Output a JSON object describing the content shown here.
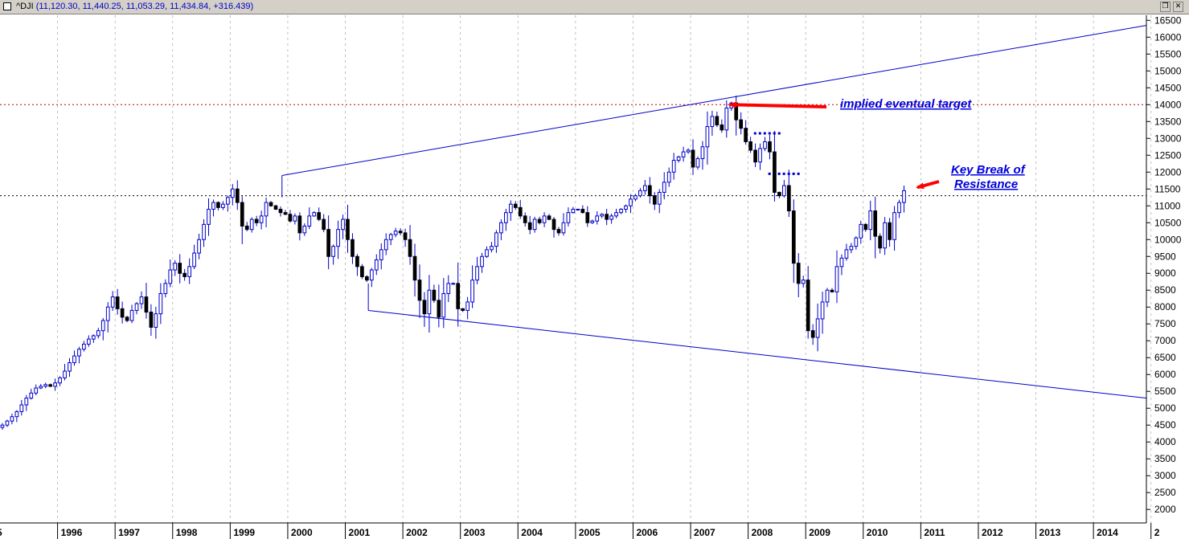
{
  "window": {
    "symbol": "^DJI",
    "ohlc": "(11,120.30, 11,440.25, 11,053.29, 11,434.84, +316.439)"
  },
  "chart_data": {
    "type": "candlestick",
    "y_axis": {
      "ticks": [
        2000,
        2500,
        3000,
        3500,
        4000,
        4500,
        5000,
        5500,
        6000,
        6500,
        7000,
        7500,
        8000,
        8500,
        9000,
        9500,
        10000,
        10500,
        11000,
        11500,
        12000,
        12500,
        13000,
        13500,
        14000,
        14500,
        15000,
        15500,
        16000,
        16500
      ],
      "range": [
        1600,
        16650
      ],
      "side": "right"
    },
    "x_axis": {
      "labels": [
        "1996",
        "1997",
        "1998",
        "1999",
        "2000",
        "2001",
        "2002",
        "2003",
        "2004",
        "2005",
        "2006",
        "2007",
        "2008",
        "2009",
        "2010",
        "2011",
        "2012",
        "2013",
        "2014",
        "2"
      ],
      "edge_label": "5",
      "range": [
        1995.0,
        2014.92
      ]
    },
    "grid": "vertical dashed at year boundaries",
    "candles": {
      "up_color": "#ffffff",
      "down_color": "#000000",
      "wick_color": "#0000c8",
      "month_close": [
        4500,
        4620,
        4750,
        4900,
        5100,
        5300,
        5450,
        5600,
        5650,
        5700,
        5650,
        5750,
        5900,
        6100,
        6350,
        6550,
        6750,
        6900,
        7050,
        7150,
        7300,
        7600,
        8000,
        8300,
        7950,
        7700,
        7600,
        7900,
        8100,
        8300,
        7850,
        7400,
        7800,
        8400,
        8700,
        9100,
        9300,
        9000,
        8900,
        9200,
        9600,
        10000,
        10450,
        10900,
        11100,
        10950,
        11050,
        11250,
        11500,
        11100,
        10400,
        10300,
        10600,
        10500,
        10700,
        11100,
        11000,
        10900,
        10800,
        10750,
        10550,
        10700,
        10200,
        10400,
        10700,
        10800,
        10600,
        10300,
        9500,
        9800,
        10300,
        10600,
        10000,
        9500,
        9200,
        8900,
        8800,
        9100,
        9400,
        9700,
        10000,
        10150,
        10250,
        10200,
        10000,
        9500,
        8800,
        8200,
        7800,
        8500,
        8200,
        7700,
        8400,
        8700,
        8700,
        7950,
        7900,
        8150,
        8800,
        9200,
        9500,
        9700,
        9800,
        10200,
        10500,
        10800,
        11050,
        10950,
        10700,
        10500,
        10300,
        10600,
        10500,
        10700,
        10600,
        10300,
        10200,
        10500,
        10800,
        10900,
        10900,
        10800,
        10500,
        10550,
        10700,
        10750,
        10600,
        10700,
        10800,
        10900,
        11000,
        11200,
        11300,
        11450,
        11600,
        11300,
        11050,
        11400,
        11700,
        12000,
        12350,
        12450,
        12600,
        12650,
        12150,
        12400,
        12750,
        13350,
        13650,
        13400,
        13250,
        13900,
        14050,
        13550,
        13300,
        12900,
        12650,
        12300,
        12700,
        12900,
        12600,
        11400,
        11300,
        11600,
        10850,
        9300,
        8700,
        8800,
        7300,
        7100,
        7650,
        8150,
        8500,
        8450,
        9200,
        9450,
        9700,
        9800,
        10050,
        10450,
        10300,
        10850,
        10100,
        9750,
        10500,
        10000,
        10800,
        11100,
        11450
      ]
    },
    "annotations": [
      {
        "text": "implied eventual target",
        "arrow_to": [
          2007.6,
          14000
        ]
      },
      {
        "text": "Key Break of",
        "line2": "Resistance",
        "arrow_to": [
          2010.8,
          11450
        ]
      }
    ],
    "reference_lines": [
      {
        "type": "horizontal",
        "y": 14000,
        "style": "dotted",
        "color": "#c00000"
      },
      {
        "type": "horizontal",
        "y": 11300,
        "style": "dotted",
        "color": "#000000"
      },
      {
        "type": "trendline",
        "from": [
          1999.9,
          11900
        ],
        "to": [
          2014.92,
          16350
        ],
        "color": "#0000c8"
      },
      {
        "type": "trendline",
        "from": [
          2001.4,
          7900
        ],
        "to": [
          2014.92,
          5300
        ],
        "color": "#0000c8"
      },
      {
        "type": "vertical",
        "from": [
          1999.9,
          11900
        ],
        "to": [
          1999.9,
          11250
        ],
        "color": "#0000c8"
      },
      {
        "type": "vertical",
        "from": [
          2001.4,
          7900
        ],
        "to": [
          2001.4,
          8700
        ],
        "color": "#0000c8"
      },
      {
        "type": "segment",
        "from": [
          2008.1,
          13150
        ],
        "to": [
          2008.6,
          13150
        ],
        "style": "dotted",
        "color": "#0000c8"
      },
      {
        "type": "segment",
        "from": [
          2008.35,
          11950
        ],
        "to": [
          2008.9,
          11950
        ],
        "style": "dotted",
        "color": "#0000c8"
      }
    ],
    "colors": {
      "trendline": "#0000c8",
      "arrow": "#ff0000",
      "annotation": "#0000dd",
      "grid": "#b0b0b0"
    }
  }
}
